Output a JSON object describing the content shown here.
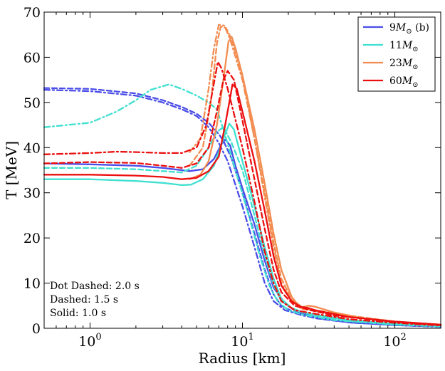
{
  "chart_data": {
    "type": "line",
    "xlabel": "Radius [km]",
    "ylabel": "T [MeV]",
    "xscale": "log",
    "xlim": [
      0.5,
      200
    ],
    "ylim": [
      0,
      70
    ],
    "grid": false,
    "legend_position": "top-right",
    "y_ticks": [
      0,
      10,
      20,
      30,
      40,
      50,
      60,
      70
    ],
    "x_ticks": [
      {
        "value": 1,
        "base": "10",
        "exp": "0"
      },
      {
        "value": 10,
        "base": "10",
        "exp": "1"
      },
      {
        "value": 100,
        "base": "10",
        "exp": "2"
      }
    ],
    "annotations": [
      "Dot Dashed: 2.0 s",
      "Dashed: 1.5 s",
      "Solid: 1.0 s"
    ],
    "series": [
      {
        "name": "9M☉ (b)",
        "mass": "9",
        "suffix": " (b)",
        "color": "#4a4de8",
        "curves": {
          "solid": [
            [
              0.5,
              36.5
            ],
            [
              1,
              36.3
            ],
            [
              2,
              36
            ],
            [
              3,
              35.5
            ],
            [
              4.5,
              34.8
            ],
            [
              5.5,
              35.2
            ],
            [
              6.5,
              37.5
            ],
            [
              7.2,
              40.5
            ],
            [
              7.7,
              41.8
            ],
            [
              8.3,
              40.5
            ],
            [
              9,
              36
            ],
            [
              10,
              31
            ],
            [
              12,
              23
            ],
            [
              14,
              15
            ],
            [
              16,
              9
            ],
            [
              19,
              5.5
            ],
            [
              23,
              3.5
            ],
            [
              30,
              2.5
            ],
            [
              50,
              1.3
            ],
            [
              100,
              0.7
            ],
            [
              200,
              0.4
            ]
          ],
          "dashed": [
            [
              0.5,
              53.2
            ],
            [
              1,
              53
            ],
            [
              2,
              52
            ],
            [
              3,
              50.5
            ],
            [
              4,
              49
            ],
            [
              5,
              47.5
            ],
            [
              6,
              45.5
            ],
            [
              7,
              43
            ],
            [
              7.5,
              41.5
            ],
            [
              8.5,
              37.5
            ],
            [
              10,
              30
            ],
            [
              12,
              21
            ],
            [
              14,
              13
            ],
            [
              16,
              7.5
            ],
            [
              18,
              5
            ],
            [
              22,
              3.5
            ],
            [
              30,
              2.2
            ],
            [
              50,
              1.3
            ],
            [
              100,
              0.7
            ],
            [
              200,
              0.4
            ]
          ],
          "dotdash": [
            [
              0.5,
              52.8
            ],
            [
              1,
              52.5
            ],
            [
              2,
              51.5
            ],
            [
              3,
              50
            ],
            [
              4,
              48.5
            ],
            [
              5,
              47
            ],
            [
              6,
              44.5
            ],
            [
              7,
              41
            ],
            [
              8,
              37
            ],
            [
              10,
              27
            ],
            [
              12,
              18
            ],
            [
              14,
              10
            ],
            [
              16,
              6
            ],
            [
              19,
              4
            ],
            [
              25,
              2.8
            ],
            [
              40,
              1.7
            ],
            [
              100,
              0.7
            ],
            [
              200,
              0.3
            ]
          ]
        }
      },
      {
        "name": "11M☉",
        "mass": "11",
        "suffix": "",
        "color": "#3fe0d0",
        "curves": {
          "solid": [
            [
              0.5,
              33
            ],
            [
              1,
              33
            ],
            [
              2,
              32.6
            ],
            [
              3,
              32.2
            ],
            [
              4,
              31.7
            ],
            [
              4.6,
              31.8
            ],
            [
              5.5,
              33
            ],
            [
              6.5,
              36
            ],
            [
              7.5,
              42
            ],
            [
              8.2,
              45.3
            ],
            [
              8.8,
              44
            ],
            [
              10,
              37
            ],
            [
              12,
              27
            ],
            [
              14,
              18
            ],
            [
              16,
              11
            ],
            [
              18,
              6.5
            ],
            [
              21,
              4.5
            ],
            [
              25,
              3.5
            ],
            [
              30,
              3
            ],
            [
              50,
              1.8
            ],
            [
              100,
              1
            ],
            [
              200,
              0.6
            ]
          ],
          "dashed": [
            [
              0.5,
              35.5
            ],
            [
              1,
              35.5
            ],
            [
              2,
              35.2
            ],
            [
              3,
              34.8
            ],
            [
              4,
              34.5
            ],
            [
              5,
              36
            ],
            [
              6,
              40
            ],
            [
              6.8,
              43.5
            ],
            [
              7.5,
              44.5
            ],
            [
              8.5,
              41
            ],
            [
              10,
              35
            ],
            [
              12,
              25
            ],
            [
              14,
              16
            ],
            [
              16,
              9.5
            ],
            [
              18,
              6
            ],
            [
              22,
              4
            ],
            [
              30,
              2.8
            ],
            [
              50,
              1.6
            ],
            [
              100,
              0.9
            ],
            [
              200,
              0.5
            ]
          ],
          "dotdash": [
            [
              0.5,
              44.5
            ],
            [
              1,
              45.5
            ],
            [
              1.5,
              48
            ],
            [
              2,
              50.5
            ],
            [
              2.5,
              52.8
            ],
            [
              3.3,
              54
            ],
            [
              4,
              53
            ],
            [
              5,
              51.5
            ],
            [
              6,
              50
            ],
            [
              6.8,
              48.5
            ],
            [
              7.5,
              44
            ],
            [
              9,
              35
            ],
            [
              11,
              25
            ],
            [
              13,
              16
            ],
            [
              15,
              9.5
            ],
            [
              17,
              6
            ],
            [
              20,
              4
            ],
            [
              25,
              3
            ],
            [
              40,
              1.8
            ],
            [
              100,
              0.8
            ],
            [
              200,
              0.4
            ]
          ]
        }
      },
      {
        "name": "23M☉",
        "mass": "23",
        "suffix": "",
        "color": "#f28c50",
        "curves": {
          "solid": [
            [
              4.5,
              33
            ],
            [
              5.3,
              34
            ],
            [
              6,
              37
            ],
            [
              6.8,
              45
            ],
            [
              7.5,
              55
            ],
            [
              8.1,
              63.5
            ],
            [
              8.5,
              64.5
            ],
            [
              9,
              62
            ],
            [
              10,
              56
            ],
            [
              12,
              44
            ],
            [
              14,
              32
            ],
            [
              16,
              21
            ],
            [
              18,
              13
            ],
            [
              21,
              7
            ],
            [
              24,
              4.5
            ],
            [
              27,
              5
            ],
            [
              30,
              4.8
            ],
            [
              40,
              3.5
            ],
            [
              60,
              2.3
            ],
            [
              100,
              1.5
            ],
            [
              200,
              0.8
            ]
          ],
          "dashed": [
            [
              4.5,
              36
            ],
            [
              5.5,
              40
            ],
            [
              6.2,
              50
            ],
            [
              6.8,
              63
            ],
            [
              7.2,
              66.8
            ],
            [
              7.8,
              66.5
            ],
            [
              8.5,
              64
            ],
            [
              10,
              56
            ],
            [
              12,
              42
            ],
            [
              14,
              30
            ],
            [
              16,
              19
            ],
            [
              18,
              11
            ],
            [
              21,
              6.5
            ],
            [
              25,
              4.5
            ],
            [
              30,
              4
            ],
            [
              50,
              2.8
            ],
            [
              100,
              1.5
            ],
            [
              200,
              0.8
            ]
          ],
          "dotdash": [
            [
              4.5,
              39
            ],
            [
              5.3,
              42
            ],
            [
              6,
              53
            ],
            [
              6.5,
              62
            ],
            [
              7,
              67.2
            ],
            [
              7.6,
              67
            ],
            [
              8.3,
              64
            ],
            [
              10,
              55
            ],
            [
              12,
              42
            ],
            [
              14,
              29
            ],
            [
              16,
              18
            ],
            [
              18,
              10
            ],
            [
              21,
              6
            ],
            [
              25,
              4.2
            ],
            [
              30,
              3.8
            ],
            [
              50,
              2.6
            ],
            [
              100,
              1.4
            ],
            [
              200,
              0.7
            ]
          ]
        }
      },
      {
        "name": "60M☉",
        "mass": "60",
        "suffix": "",
        "color": "#ec0f0f",
        "curves": {
          "solid": [
            [
              0.5,
              34
            ],
            [
              1,
              34
            ],
            [
              2,
              33.8
            ],
            [
              3,
              33.5
            ],
            [
              4,
              33
            ],
            [
              5,
              33.3
            ],
            [
              6,
              34.8
            ],
            [
              7,
              38
            ],
            [
              7.7,
              45
            ],
            [
              8.3,
              51
            ],
            [
              8.6,
              54
            ],
            [
              9.2,
              53
            ],
            [
              10,
              48
            ],
            [
              12,
              37
            ],
            [
              14,
              26
            ],
            [
              16,
              16
            ],
            [
              18,
              9.5
            ],
            [
              21,
              6
            ],
            [
              24,
              4.8
            ],
            [
              27,
              4.5
            ],
            [
              30,
              4
            ],
            [
              50,
              2.5
            ],
            [
              100,
              1.5
            ],
            [
              200,
              0.8
            ]
          ],
          "dashed": [
            [
              0.5,
              36.5
            ],
            [
              1,
              36.8
            ],
            [
              2,
              36.6
            ],
            [
              3,
              36
            ],
            [
              4,
              35.5
            ],
            [
              5,
              36.5
            ],
            [
              6,
              40
            ],
            [
              6.8,
              48
            ],
            [
              7.5,
              55
            ],
            [
              8,
              57
            ],
            [
              8.8,
              55
            ],
            [
              10,
              46
            ],
            [
              12,
              33
            ],
            [
              14,
              22
            ],
            [
              16,
              13
            ],
            [
              18,
              8
            ],
            [
              22,
              5
            ],
            [
              28,
              4
            ],
            [
              40,
              2.8
            ],
            [
              100,
              1.4
            ],
            [
              200,
              0.7
            ]
          ],
          "dotdash": [
            [
              0.5,
              38.5
            ],
            [
              1,
              38.8
            ],
            [
              1.5,
              39.1
            ],
            [
              2,
              39
            ],
            [
              3,
              38.8
            ],
            [
              4,
              38.8
            ],
            [
              5,
              40
            ],
            [
              5.8,
              45
            ],
            [
              6.4,
              53
            ],
            [
              6.9,
              59
            ],
            [
              7.3,
              57.5
            ],
            [
              8,
              53
            ],
            [
              10,
              40
            ],
            [
              12,
              28
            ],
            [
              14,
              17
            ],
            [
              16,
              10
            ],
            [
              18,
              6
            ],
            [
              22,
              4
            ],
            [
              30,
              3.2
            ],
            [
              50,
              2
            ],
            [
              100,
              1.2
            ],
            [
              200,
              0.6
            ]
          ]
        }
      }
    ]
  }
}
